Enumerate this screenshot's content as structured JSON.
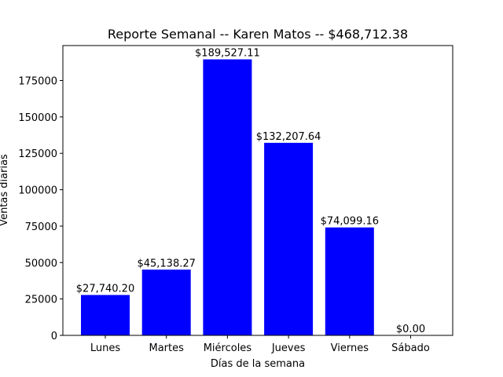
{
  "chart_data": {
    "type": "bar",
    "title": "Reporte Semanal -- Karen Matos  -- $468,712.38",
    "xlabel": "Días de la semana",
    "ylabel": "Ventas diarias",
    "categories": [
      "Lunes",
      "Martes",
      "Miércoles",
      "Jueves",
      "Viernes",
      "Sábado"
    ],
    "values": [
      27740.2,
      45138.27,
      189527.11,
      132207.64,
      74099.16,
      0.0
    ],
    "data_labels": [
      "$27,740.20",
      "$45,138.27",
      "$189,527.11",
      "$132,207.64",
      "$74,099.16",
      "$0.00"
    ],
    "yticks": [
      0,
      25000,
      50000,
      75000,
      100000,
      125000,
      150000,
      175000
    ],
    "ylim": [
      0,
      199003.47
    ],
    "bar_color": "#0000ff",
    "grid": false
  }
}
